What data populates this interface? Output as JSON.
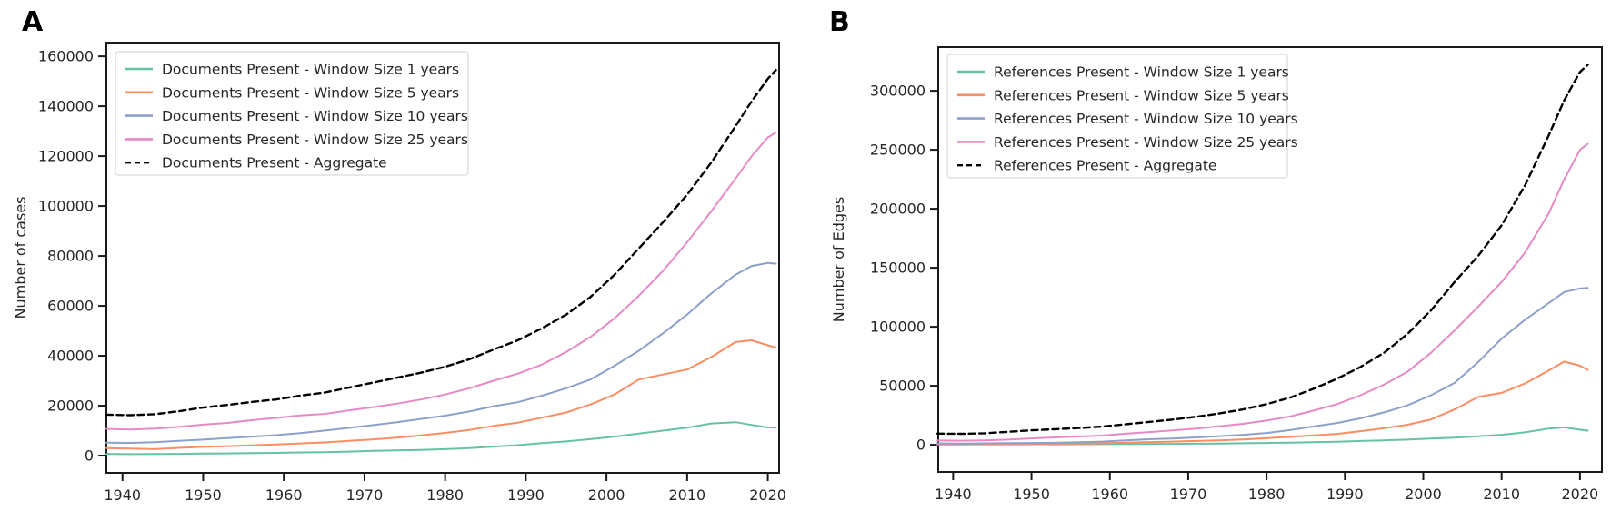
{
  "figure": {
    "background": "#ffffff",
    "text_color": "#262626",
    "spine_color": "#1a1a1a",
    "legend_border_color": "#d9d9d9"
  },
  "chart_data": [
    {
      "id": "A",
      "panel_label": "A",
      "type": "line",
      "title": "",
      "xlabel": "",
      "ylabel": "Number of cases",
      "grid": false,
      "legend_position": "upper left",
      "xlim": [
        1938,
        2021.4
      ],
      "ylim": [
        -6900,
        165500
      ],
      "x_ticks": [
        1940,
        1950,
        1960,
        1970,
        1980,
        1990,
        2000,
        2010,
        2020
      ],
      "x_tick_labels": [
        "1940",
        "1950",
        "1960",
        "1970",
        "1980",
        "1990",
        "2000",
        "2010",
        "2020"
      ],
      "y_ticks": [
        0,
        20000,
        40000,
        60000,
        80000,
        100000,
        120000,
        140000,
        160000
      ],
      "y_tick_labels": [
        "0",
        "20000",
        "40000",
        "60000",
        "80000",
        "100000",
        "120000",
        "140000",
        "160000"
      ],
      "x": [
        1938,
        1941,
        1944,
        1947,
        1950,
        1953,
        1956,
        1959,
        1962,
        1965,
        1968,
        1971,
        1974,
        1977,
        1980,
        1983,
        1986,
        1989,
        1992,
        1995,
        1998,
        2001,
        2004,
        2007,
        2010,
        2013,
        2016,
        2018,
        2020,
        2021
      ],
      "series": [
        {
          "key": "window-1",
          "name": "Documents Present - Window Size 1 years",
          "color": "#66c2a5",
          "dash": false,
          "values": [
            700,
            600,
            650,
            700,
            800,
            900,
            1000,
            1100,
            1300,
            1400,
            1600,
            1900,
            2100,
            2300,
            2600,
            3000,
            3600,
            4200,
            5000,
            5700,
            6600,
            7600,
            8800,
            10000,
            11200,
            12900,
            13400,
            12300,
            11300,
            11200
          ]
        },
        {
          "key": "window-5",
          "name": "Documents Present - Window Size 5 years",
          "color": "#fc8d62",
          "dash": false,
          "values": [
            3000,
            2800,
            2600,
            3100,
            3500,
            3800,
            4100,
            4500,
            4900,
            5300,
            5900,
            6500,
            7200,
            8100,
            9100,
            10300,
            11900,
            13200,
            15200,
            17300,
            20500,
            24500,
            30500,
            32500,
            34500,
            39500,
            45500,
            46200,
            44200,
            43300
          ]
        },
        {
          "key": "window-10",
          "name": "Documents Present - Window Size 10 years",
          "color": "#8da0cb",
          "dash": false,
          "values": [
            5200,
            5100,
            5400,
            5900,
            6400,
            7000,
            7600,
            8200,
            9000,
            10000,
            11100,
            12200,
            13400,
            14700,
            16000,
            17700,
            19800,
            21400,
            24000,
            27000,
            30500,
            36000,
            42000,
            49000,
            56500,
            65000,
            72500,
            76000,
            77200,
            76900
          ]
        },
        {
          "key": "window-25",
          "name": "Documents Present - Window Size 25 years",
          "color": "#e78ac3",
          "dash": false,
          "values": [
            10700,
            10500,
            10800,
            11500,
            12400,
            13100,
            14200,
            15100,
            16100,
            16700,
            18100,
            19400,
            20800,
            22500,
            24500,
            27000,
            30000,
            32800,
            36500,
            41500,
            47500,
            55000,
            64000,
            74000,
            85500,
            98000,
            111000,
            120000,
            127500,
            129500
          ]
        },
        {
          "key": "aggregate",
          "name": "Documents Present - Aggregate",
          "color": "#000000",
          "dash": true,
          "values": [
            16400,
            16200,
            16600,
            17800,
            19300,
            20300,
            21500,
            22500,
            24000,
            25200,
            27200,
            29200,
            31200,
            33200,
            35600,
            38600,
            42500,
            46200,
            51000,
            56500,
            63500,
            72500,
            83000,
            93500,
            104500,
            117500,
            132000,
            142000,
            151000,
            154500
          ]
        }
      ]
    },
    {
      "id": "B",
      "panel_label": "B",
      "type": "line",
      "title": "",
      "xlabel": "",
      "ylabel": "Number of Edges",
      "grid": false,
      "legend_position": "upper left",
      "xlim": [
        1938.1,
        2022.8
      ],
      "ylim": [
        -23000,
        337000
      ],
      "x_ticks": [
        1940,
        1950,
        1960,
        1970,
        1980,
        1990,
        2000,
        2010,
        2020
      ],
      "x_tick_labels": [
        "1940",
        "1950",
        "1960",
        "1970",
        "1980",
        "1990",
        "2000",
        "2010",
        "2020"
      ],
      "y_ticks": [
        0,
        50000,
        100000,
        150000,
        200000,
        250000,
        300000
      ],
      "y_tick_labels": [
        "0",
        "50000",
        "100000",
        "150000",
        "200000",
        "250000",
        "300000"
      ],
      "x": [
        1938,
        1941,
        1944,
        1947,
        1950,
        1953,
        1956,
        1959,
        1962,
        1965,
        1968,
        1971,
        1974,
        1977,
        1980,
        1983,
        1986,
        1989,
        1992,
        1995,
        1998,
        2001,
        2004,
        2007,
        2010,
        2013,
        2016,
        2018,
        2020,
        2021
      ],
      "series": [
        {
          "key": "window-1",
          "name": "References Present - Window Size 1 years",
          "color": "#66c2a5",
          "dash": false,
          "values": [
            300,
            300,
            350,
            400,
            450,
            400,
            450,
            500,
            600,
            700,
            800,
            900,
            1100,
            1300,
            1500,
            1800,
            2200,
            2600,
            3200,
            3800,
            4400,
            5200,
            6000,
            7200,
            8500,
            10500,
            13800,
            14800,
            12800,
            12000
          ]
        },
        {
          "key": "window-5",
          "name": "References Present - Window Size 5 years",
          "color": "#fc8d62",
          "dash": false,
          "values": [
            900,
            800,
            700,
            900,
            1000,
            1000,
            1100,
            1300,
            1800,
            2300,
            2700,
            3200,
            3800,
            4500,
            5500,
            6700,
            8000,
            9200,
            11500,
            14000,
            17000,
            21500,
            30000,
            40500,
            44000,
            52000,
            63000,
            70500,
            67000,
            63500
          ]
        },
        {
          "key": "window-10",
          "name": "References Present - Window Size 10 years",
          "color": "#8da0cb",
          "dash": false,
          "values": [
            1200,
            1100,
            1200,
            1400,
            1500,
            1700,
            2200,
            2700,
            3700,
            4700,
            5300,
            6200,
            7300,
            8500,
            10000,
            12500,
            15500,
            18500,
            22500,
            27500,
            33500,
            42000,
            52500,
            70000,
            90000,
            106000,
            120000,
            129500,
            132500,
            133000
          ]
        },
        {
          "key": "window-25",
          "name": "References Present - Window Size 25 years",
          "color": "#e78ac3",
          "dash": false,
          "values": [
            3600,
            3500,
            3800,
            4400,
            5400,
            6200,
            7000,
            7800,
            9400,
            10800,
            12200,
            13800,
            15800,
            17800,
            20500,
            24000,
            29000,
            34500,
            42000,
            51000,
            62000,
            78000,
            97000,
            117000,
            138000,
            163000,
            196000,
            225000,
            250000,
            255000
          ]
        },
        {
          "key": "aggregate",
          "name": "References Present - Aggregate",
          "color": "#000000",
          "dash": true,
          "values": [
            9500,
            9300,
            9800,
            11000,
            12300,
            13200,
            14200,
            15400,
            17400,
            19400,
            21400,
            23800,
            26600,
            30000,
            34500,
            40000,
            47500,
            56000,
            66000,
            78000,
            94000,
            114000,
            138000,
            160000,
            186000,
            220000,
            262000,
            292000,
            316000,
            322000
          ]
        }
      ]
    }
  ]
}
